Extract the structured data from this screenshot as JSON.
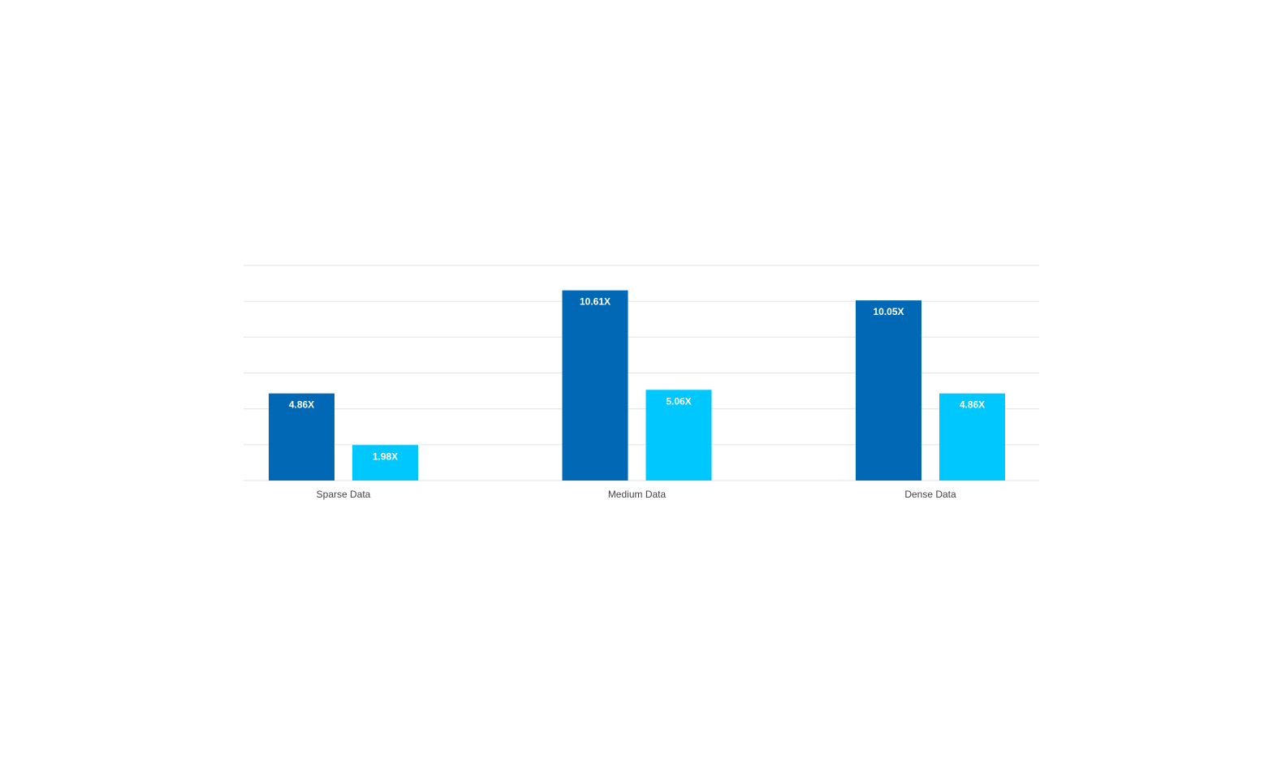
{
  "chart_data": {
    "type": "bar",
    "title": "",
    "xlabel": "",
    "ylabel": "",
    "categories": [
      "Sparse Data",
      "Medium Data",
      "Dense Data"
    ],
    "series": [
      {
        "values": [
          4.86,
          10.61,
          10.05
        ],
        "labels": [
          "4.86X",
          "10.61X",
          "10.05X"
        ],
        "color": "#0068B5"
      },
      {
        "values": [
          1.98,
          5.06,
          4.86
        ],
        "labels": [
          "1.98X",
          "5.06X",
          "4.86X"
        ],
        "color": "#00C7FD"
      }
    ],
    "ylim": [
      0,
      12
    ],
    "grid_step": 2,
    "grid": true,
    "y_tick_labels_shown": false,
    "legend": "none"
  }
}
